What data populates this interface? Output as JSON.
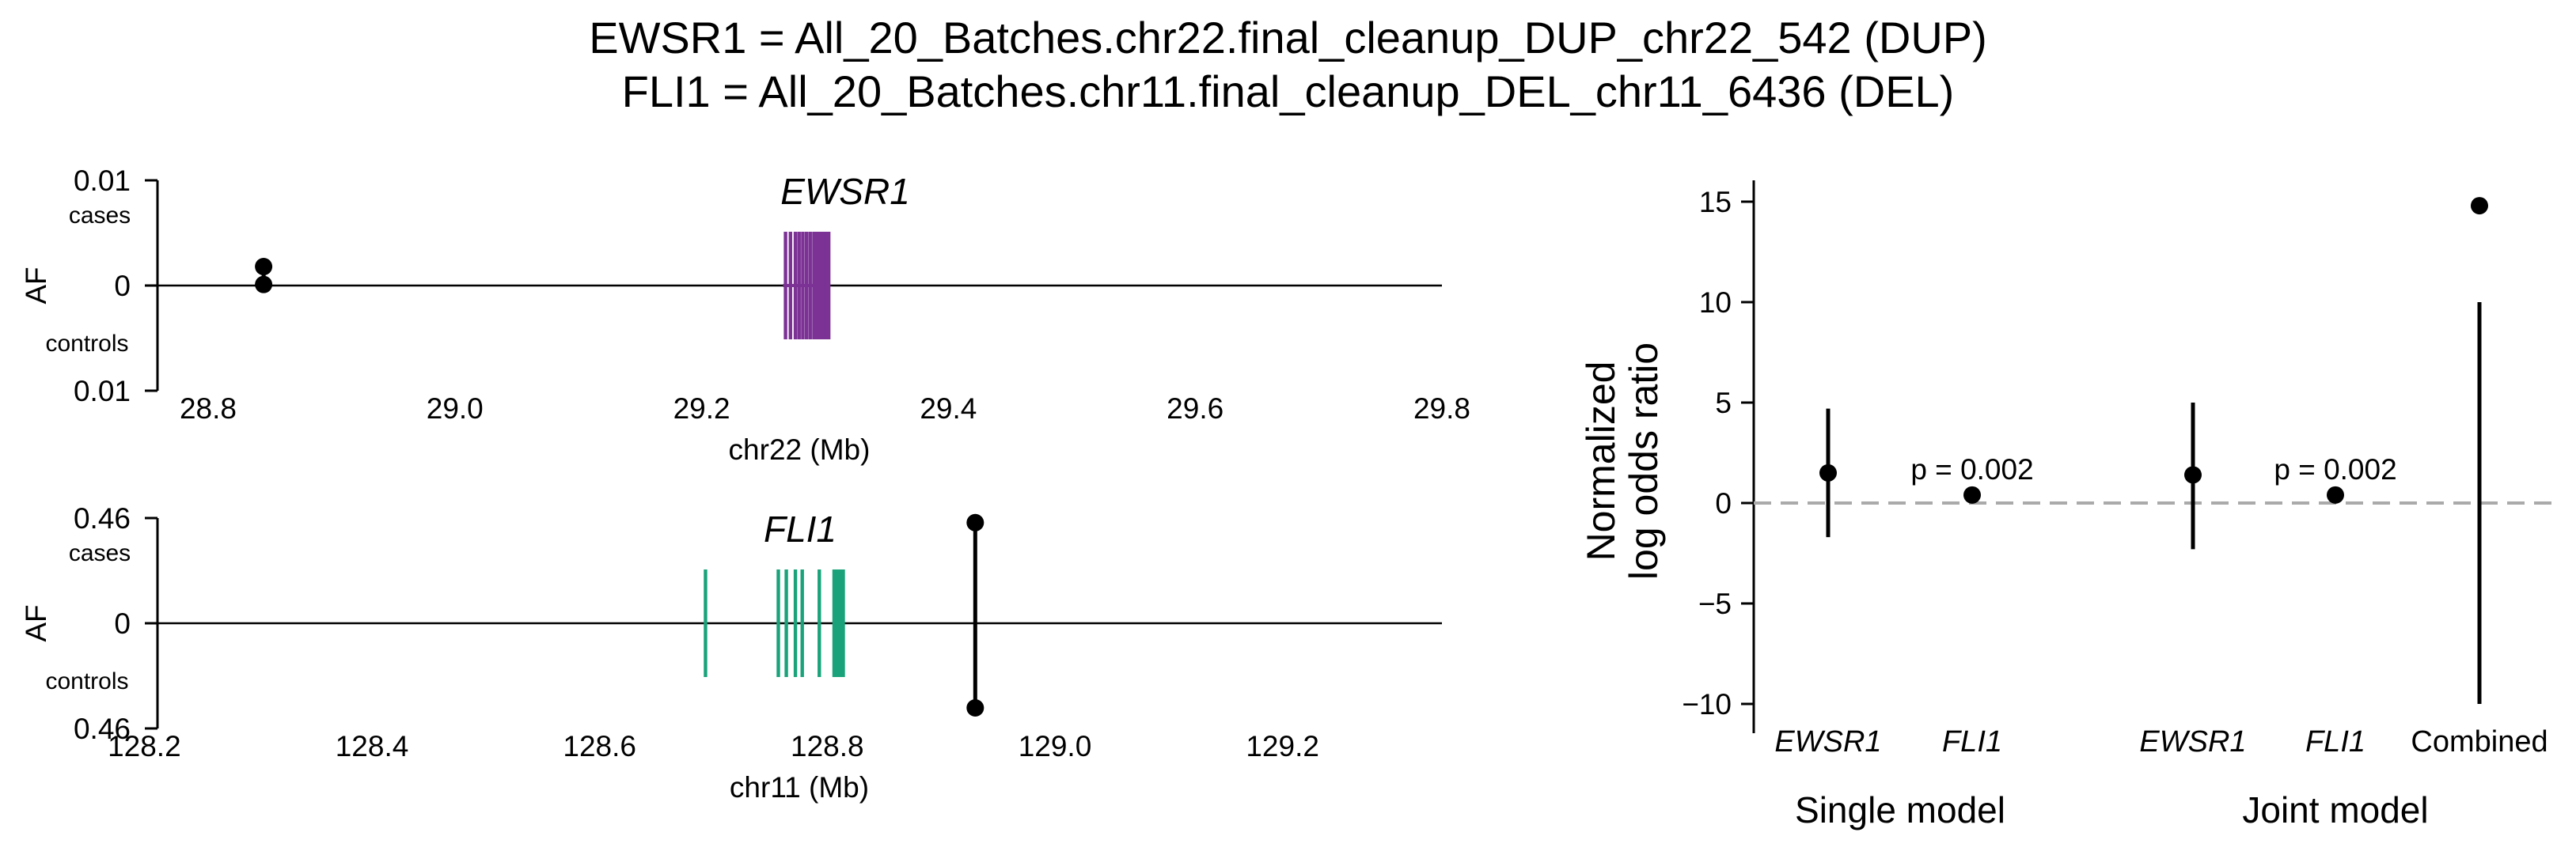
{
  "title_lines": [
    "EWSR1 = All_20_Batches.chr22.final_cleanup_DUP_chr22_542 (DUP)",
    "FLI1 = All_20_Batches.chr11.final_cleanup_DEL_chr11_6436 (DEL)"
  ],
  "chart_data": [
    {
      "type": "scatter",
      "panel": "EWSR1 allele frequency",
      "gene": "EWSR1",
      "gene_color": "#7b3294",
      "gene_exons_mb": [
        29.268,
        29.272,
        29.276,
        29.279,
        29.282,
        29.285,
        29.288,
        29.291,
        29.293,
        29.295,
        29.297,
        29.299,
        29.301,
        29.303
      ],
      "gene_span_mb": [
        29.266,
        29.304
      ],
      "xlabel": "chr22 (Mb)",
      "ylabel": "AF",
      "xlim": [
        28.75,
        29.8
      ],
      "xticks": [
        28.8,
        29.0,
        29.2,
        29.4,
        29.6,
        29.8
      ],
      "xtick_labels": [
        "28.8",
        "29.0",
        "29.2",
        "29.4",
        "29.6",
        "29.8"
      ],
      "ylim": [
        -0.01,
        0.01
      ],
      "ytick_labels": [
        "0.01",
        "0",
        "0.01"
      ],
      "cases_label": "cases",
      "controls_label": "controls",
      "variant": {
        "pos_mb": 28.845,
        "af_cases": 0.0018,
        "af_controls": 0.0001
      }
    },
    {
      "type": "scatter",
      "panel": "FLI1 allele frequency",
      "gene": "FLI1",
      "gene_color": "#1aa37a",
      "gene_exons_mb": [
        128.693,
        128.757,
        128.764,
        128.772,
        128.778,
        128.793,
        128.806,
        128.808,
        128.81,
        128.811,
        128.812,
        128.813,
        128.814
      ],
      "gene_span_mb": [
        128.806,
        128.815
      ],
      "xlabel": "chr11 (Mb)",
      "ylabel": "AF",
      "xlim": [
        128.19,
        129.34
      ],
      "xticks": [
        128.2,
        128.4,
        128.6,
        128.8,
        129.0,
        129.2
      ],
      "xtick_labels": [
        "128.2",
        "128.4",
        "128.6",
        "128.8",
        "129.0",
        "129.2"
      ],
      "ylim": [
        -0.46,
        0.46
      ],
      "ytick_labels": [
        "0.46",
        "0",
        "0.46"
      ],
      "cases_label": "cases",
      "controls_label": "controls",
      "variant": {
        "pos_mb": 128.93,
        "af_cases": 0.44,
        "af_controls": -0.37
      }
    },
    {
      "type": "scatter",
      "panel": "Normalized log odds ratio",
      "ylabel_lines": [
        "Normalized",
        "log odds ratio"
      ],
      "ylim": [
        -11,
        16
      ],
      "yticks": [
        15,
        10,
        5,
        0,
        -5,
        -10
      ],
      "ytick_labels": [
        "15",
        "10",
        "5",
        "0",
        "−10"
      ],
      "ytick_labels_full": [
        "15",
        "10",
        "5",
        "0",
        "−5",
        "−10"
      ],
      "reference_line_y": 0,
      "categories": [
        "EWSR1",
        "FLI1",
        "EWSR1",
        "FLI1",
        "Combined"
      ],
      "italic_categories": [
        true,
        true,
        true,
        true,
        false
      ],
      "groups": [
        "Single model",
        "Joint model"
      ],
      "points": [
        {
          "label": "EWSR1",
          "model": "Single model",
          "estimate": 1.5,
          "ci": [
            -1.7,
            4.7
          ],
          "annotation": ""
        },
        {
          "label": "FLI1",
          "model": "Single model",
          "estimate": 0.4,
          "ci": [
            0.4,
            0.4
          ],
          "annotation": "p = 0.002"
        },
        {
          "label": "EWSR1",
          "model": "Joint model",
          "estimate": 1.4,
          "ci": [
            -2.3,
            5.0
          ],
          "annotation": ""
        },
        {
          "label": "FLI1",
          "model": "Joint model",
          "estimate": 0.4,
          "ci": [
            0.4,
            0.4
          ],
          "annotation": "p = 0.002"
        },
        {
          "label": "Combined",
          "model": "Joint model",
          "estimate": 14.8,
          "ci": [
            -10.0,
            10.0
          ],
          "annotation": ""
        }
      ],
      "colors": {
        "points": "#000000",
        "reference_line": "#aaaaaa"
      }
    }
  ]
}
